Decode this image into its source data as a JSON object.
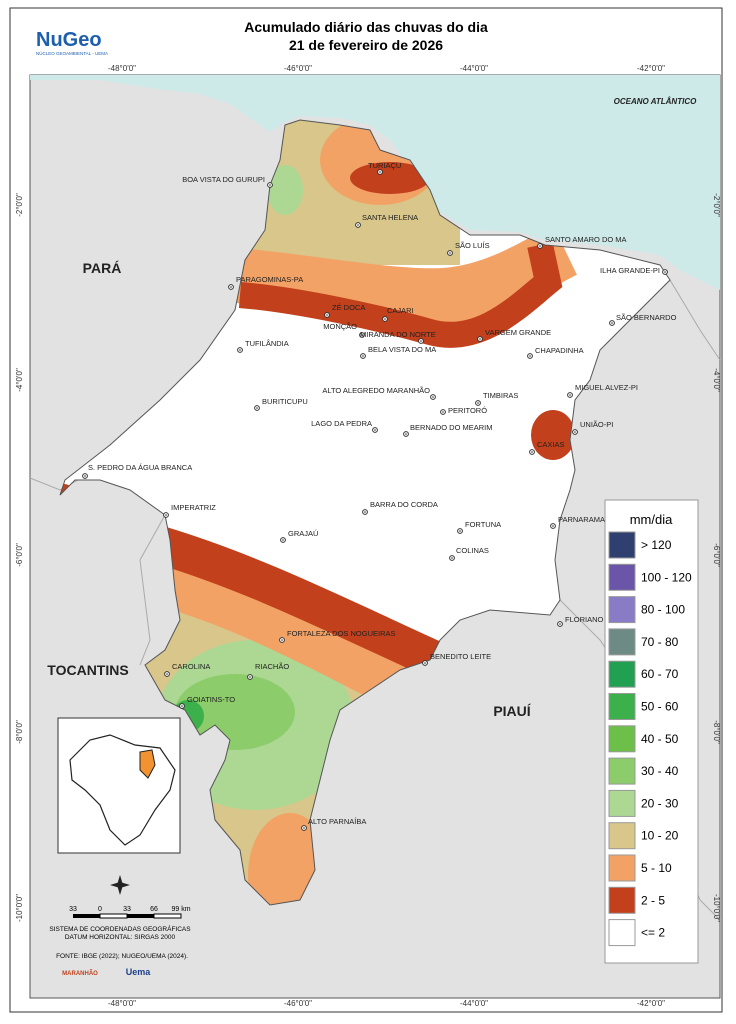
{
  "header": {
    "title_line1": "Acumulado diário das chuvas do dia",
    "title_line2": "21 de fevereiro de 2026",
    "logo": "NuGeo",
    "logo_subtitle": "NÚCLEO GEOAMBIENTAL - UEMA"
  },
  "grid": {
    "longitudes": [
      "-48°0'0\"",
      "-46°0'0\"",
      "-44°0'0\"",
      "-42°0'0\""
    ],
    "latitudes": [
      "-2°0'0\"",
      "-4°0'0\"",
      "-6°0'0\"",
      "-8°0'0\"",
      "-10°0'0\""
    ]
  },
  "regions": [
    "OCEANO ATLÂNTICO",
    "PARÁ",
    "TOCANTINS",
    "PIAUÍ"
  ],
  "cities": [
    "TURIAÇU",
    "BOA VISTA DO GURUPI",
    "SANTA HELENA",
    "SÃO LUÍS",
    "SANTO AMARO DO MA",
    "ILHA GRANDE-PI",
    "PARAGOMINAS-PA",
    "ZÉ DOCA",
    "CAJARI",
    "MONÇÃO",
    "MIRANDA DO NORTE",
    "VARGEM GRANDE",
    "SÃO BERNARDO",
    "BELA VISTA DO MA",
    "TUFILÂNDIA",
    "CHAPADINHA",
    "MIGUEL ALVEZ-PI",
    "ALTO ALEGREDO MARANHÃO",
    "TIMBIRAS",
    "BURITICUPU",
    "PERITORÓ",
    "UNIÃO-PI",
    "LAGO DA PEDRA",
    "BERNADO DO MEARIM",
    "CAXIAS",
    "S. PEDRO DA ÁGUA BRANCA",
    "IMPERATRIZ",
    "BARRA DO CORDA",
    "PARNARAMA",
    "FORTUNA",
    "GRAJAÚ",
    "COLINAS",
    "FLORIANO",
    "FORTALEZA DOS NOGUEIRAS",
    "BENEDITO LEITE",
    "CAROLINA",
    "RIACHÃO",
    "GOIATINS-TO",
    "ALTO PARNAÍBA"
  ],
  "legend": {
    "title": "mm/dia",
    "items": [
      {
        "label": "> 120",
        "color": "#2f3f6f"
      },
      {
        "label": "100 - 120",
        "color": "#6a55a8"
      },
      {
        "label": "80 - 100",
        "color": "#8a7bc6"
      },
      {
        "label": "70 - 80",
        "color": "#6e8a84"
      },
      {
        "label": "60 - 70",
        "color": "#22a052"
      },
      {
        "label": "50 - 60",
        "color": "#3cb04a"
      },
      {
        "label": "40 - 50",
        "color": "#6cc04a"
      },
      {
        "label": "30 - 40",
        "color": "#8ccc6a"
      },
      {
        "label": "20 - 30",
        "color": "#acd894"
      },
      {
        "label": "10 - 20",
        "color": "#d8c68a"
      },
      {
        "label": "5 - 10",
        "color": "#f3a266"
      },
      {
        "label": "2 - 5",
        "color": "#c2401c"
      },
      {
        "label": "<= 2",
        "color": "#ffffff"
      }
    ]
  },
  "scale": {
    "labels": [
      "33",
      "0",
      "33",
      "66",
      "99 km"
    ]
  },
  "credits": [
    "SISTEMA DE COORDENADAS GEOGRÁFICAS",
    "DATUM HORIZONTAL: SIRGAS 2000",
    "FONTE: IBGE (2022); NUGEO/UEMA (2024)."
  ],
  "logos": [
    "MARANHÃO",
    "Uema"
  ]
}
